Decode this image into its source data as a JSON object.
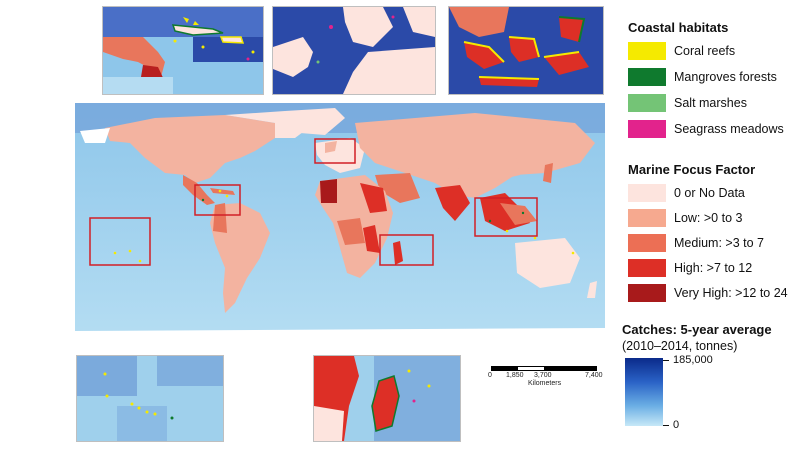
{
  "legend": {
    "coastal_title": "Coastal habitats",
    "coastal_items": [
      {
        "label": "Coral reefs",
        "color": "#f5ea00"
      },
      {
        "label": "Mangroves forests",
        "color": "#0f7a2e"
      },
      {
        "label": "Salt marshes",
        "color": "#74c476"
      },
      {
        "label": "Seagrass meadows",
        "color": "#e2238c"
      }
    ],
    "mff_title": "Marine Focus Factor",
    "mff_items": [
      {
        "label": "0 or No Data",
        "color": "#fde4de"
      },
      {
        "label": "Low: >0 to 3",
        "color": "#f6a98f"
      },
      {
        "label": "Medium: >3 to 7",
        "color": "#ec6f55"
      },
      {
        "label": "High: >7 to 12",
        "color": "#dd2f26"
      },
      {
        "label": "Very High: >12 to 24",
        "color": "#a81a1b"
      }
    ],
    "catch_title": "Catches: 5-year average",
    "catch_subtitle": "(2010–2014, tonnes)",
    "catch_max": "185,000",
    "catch_min": "0",
    "catch_colors": {
      "low": "#c6e8f7",
      "high": "#0a2a8a"
    }
  },
  "scalebar": {
    "ticks": [
      "0",
      "1,850",
      "3,700",
      "7,400"
    ],
    "unit": "Kilometers"
  },
  "map_colors": {
    "ocean": "#a6d5ee",
    "ocean_deep": "#5d8fd0",
    "land_default": "#fde4de",
    "highlight_box": "#d21f26"
  },
  "highlight_regions": [
    "caribbean",
    "north-sea",
    "southeast-asia",
    "pacific-islands",
    "madagascar"
  ]
}
